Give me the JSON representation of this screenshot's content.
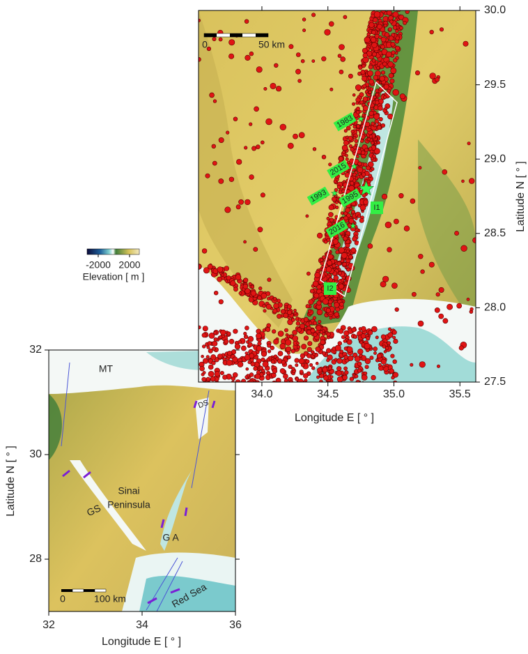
{
  "main_map": {
    "xlim": [
      33.52,
      35.62
    ],
    "ylim": [
      27.5,
      30
    ],
    "xticks": [
      {
        "value": 34,
        "label": "34.0"
      },
      {
        "value": 34.5,
        "label": "34.5"
      },
      {
        "value": 35,
        "label": "35.0"
      },
      {
        "value": 35.5,
        "label": "35.5"
      }
    ],
    "yticks": [
      {
        "value": 27.5,
        "label": "27.5"
      },
      {
        "value": 28,
        "label": "28.0"
      },
      {
        "value": 28.5,
        "label": "28.5"
      },
      {
        "value": 29,
        "label": "29.0"
      },
      {
        "value": 29.5,
        "label": "29.5"
      },
      {
        "value": 30,
        "label": "30.0"
      }
    ],
    "xlabel": "Longitude E [ ° ]",
    "ylabel": "Latitude N [ ° ]",
    "scale_bar": [
      "0",
      "50 km"
    ],
    "events": [
      {
        "label": "1983",
        "lon": 34.75,
        "lat": 29.27
      },
      {
        "label": "2015",
        "lon": 34.7,
        "lat": 28.95
      },
      {
        "label": "1993",
        "lon": 34.55,
        "lat": 28.77
      },
      {
        "label": "1995",
        "lon": 34.79,
        "lat": 28.8
      },
      {
        "label": "2016",
        "lon": 34.69,
        "lat": 28.55
      }
    ],
    "segments": [
      "I1",
      "I2"
    ]
  },
  "colorbar": {
    "ticks": [
      -2000,
      2000
    ],
    "label": "Elevation [ m ]"
  },
  "inset_map": {
    "xlim": [
      32,
      36
    ],
    "ylim": [
      27,
      32
    ],
    "xticks": [
      32,
      34,
      36
    ],
    "yticks": [
      28,
      30,
      32
    ],
    "xlabel": "Longitude E [ ° ]",
    "ylabel": "Latitude N [ ° ]",
    "scale_bar": [
      "0",
      "100 km"
    ],
    "labels": [
      "MT",
      "DS",
      "Sinai",
      "Peninsula",
      "GS",
      "G A",
      "Red Sea"
    ]
  }
}
